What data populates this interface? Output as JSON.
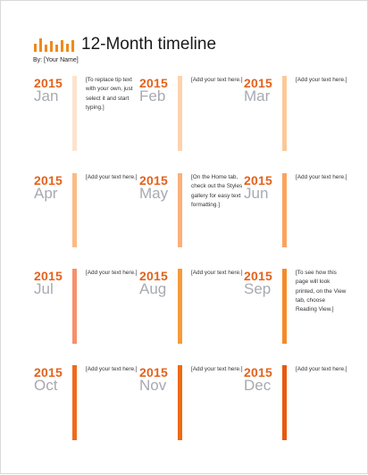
{
  "document": {
    "title": "12-Month timeline",
    "byline": "By: [Your Name]"
  },
  "colors": {
    "accent": "#ee8a1e",
    "year": "#e4621b",
    "month": "#a6aab1"
  },
  "months": [
    {
      "year": "2015",
      "month": "Jan",
      "note": "[To replace tip text with your own, just select it and start typing.]",
      "bar_color": "#fde3cc"
    },
    {
      "year": "2015",
      "month": "Feb",
      "note": "[Add your text here.]",
      "bar_color": "#fdd3ac"
    },
    {
      "year": "2015",
      "month": "Mar",
      "note": "[Add your text here.]",
      "bar_color": "#fcc898"
    },
    {
      "year": "2015",
      "month": "Apr",
      "note": "[Add your text here.]",
      "bar_color": "#fbbb84"
    },
    {
      "year": "2015",
      "month": "May",
      "note": "[On the Home tab, check out the Styles gallery for easy text formatting.]",
      "bar_color": "#fbb078"
    },
    {
      "year": "2015",
      "month": "Jun",
      "note": "[Add your text here.]",
      "bar_color": "#fba35e"
    },
    {
      "year": "2015",
      "month": "Jul",
      "note": "[Add your text here.]",
      "bar_color": "#f6906b"
    },
    {
      "year": "2015",
      "month": "Aug",
      "note": "[Add your text here.]",
      "bar_color": "#f89a3c"
    },
    {
      "year": "2015",
      "month": "Sep",
      "note": "[To see how this page will look printed, on the View tab, choose Reading View.]",
      "bar_color": "#f68b28"
    },
    {
      "year": "2015",
      "month": "Oct",
      "note": "[Add your text here.]",
      "bar_color": "#f06a1e"
    },
    {
      "year": "2015",
      "month": "Nov",
      "note": "[Add your text here.]",
      "bar_color": "#ee6a12"
    },
    {
      "year": "2015",
      "month": "Dec",
      "note": "[Add your text here.]",
      "bar_color": "#e8580e"
    }
  ]
}
